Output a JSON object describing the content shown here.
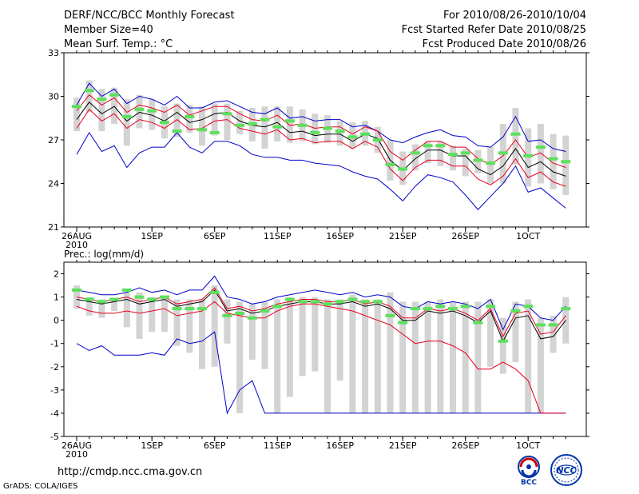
{
  "header": {
    "title": "DERF/NCC/BCC Monthly Forecast",
    "member_size": "Member Size=40",
    "variable": "Mean Surf. Temp.: °C",
    "forecast_range": "For 2010/08/26-2010/10/04",
    "started": "Fcst Started Refer Date 2010/08/25",
    "produced": "Fcst Produced Date 2010/08/26"
  },
  "footer": {
    "url": "http://cmdp.ncc.cma.gov.cn",
    "credit": "GrADS: COLA/IGES",
    "logo1_text": "BCC",
    "logo2_text": "NCC"
  },
  "colors": {
    "box": "#d3d3d3",
    "mean": "#000000",
    "sd": "#e8001c",
    "minmax": "#0000cc",
    "median": "#5ce05c"
  },
  "chart_data": [
    {
      "type": "box",
      "title": "Mean Surf. Temp.: °C",
      "xlabel": "",
      "ylabel": "",
      "ylim": [
        21,
        33
      ],
      "yticks": [
        21,
        24,
        27,
        30,
        33
      ],
      "xticks": [
        {
          "day": 0,
          "label": "26AUG",
          "sub": "2010"
        },
        {
          "day": 6,
          "label": "1SEP"
        },
        {
          "day": 11,
          "label": "6SEP"
        },
        {
          "day": 16,
          "label": "11SEP"
        },
        {
          "day": 21,
          "label": "16SEP"
        },
        {
          "day": 26,
          "label": "21SEP"
        },
        {
          "day": 31,
          "label": "26SEP"
        },
        {
          "day": 36,
          "label": "1OCT"
        }
      ],
      "days": 40,
      "series": {
        "mean": [
          28.4,
          29.6,
          28.8,
          29.3,
          28.3,
          28.9,
          28.7,
          28.3,
          28.9,
          28.2,
          28.4,
          28.8,
          28.9,
          28.3,
          28.0,
          27.9,
          28.2,
          27.5,
          27.6,
          27.3,
          27.4,
          27.4,
          26.9,
          27.4,
          27.1,
          25.6,
          24.9,
          25.7,
          26.3,
          26.3,
          25.9,
          25.9,
          25.0,
          24.6,
          25.2,
          26.4,
          25.1,
          25.5,
          24.8,
          24.5
        ],
        "sd_upper": [
          29.0,
          30.1,
          29.4,
          29.9,
          28.9,
          29.4,
          29.2,
          28.9,
          29.4,
          28.7,
          29.0,
          29.3,
          29.3,
          28.8,
          28.4,
          28.3,
          28.7,
          28.0,
          28.1,
          27.8,
          27.9,
          27.9,
          27.4,
          27.9,
          27.6,
          26.2,
          25.6,
          26.3,
          26.9,
          26.9,
          26.5,
          26.5,
          25.7,
          25.3,
          25.9,
          27.0,
          25.8,
          26.1,
          25.4,
          25.1
        ],
        "sd_lower": [
          27.8,
          29.1,
          28.3,
          28.8,
          27.8,
          28.4,
          28.2,
          27.8,
          28.4,
          27.7,
          27.8,
          28.3,
          28.4,
          27.8,
          27.6,
          27.4,
          27.7,
          27.0,
          27.1,
          26.8,
          26.9,
          26.9,
          26.4,
          26.9,
          26.5,
          25.0,
          24.2,
          25.1,
          25.6,
          25.6,
          25.2,
          25.2,
          24.3,
          23.9,
          24.5,
          25.7,
          24.4,
          24.8,
          24.1,
          23.8
        ],
        "max": [
          29.4,
          30.9,
          30.0,
          30.5,
          29.5,
          30.0,
          29.8,
          29.4,
          30.0,
          29.2,
          29.2,
          29.6,
          29.7,
          29.3,
          28.9,
          28.8,
          29.2,
          28.5,
          28.6,
          28.3,
          28.4,
          28.4,
          27.9,
          28.0,
          27.6,
          27.0,
          26.8,
          27.2,
          27.5,
          27.7,
          27.3,
          27.2,
          26.6,
          26.5,
          27.2,
          28.6,
          26.9,
          27.0,
          26.4,
          26.2
        ],
        "min": [
          26.0,
          27.5,
          26.2,
          26.6,
          25.1,
          26.1,
          26.5,
          26.5,
          27.5,
          26.5,
          26.1,
          26.9,
          26.9,
          26.6,
          26.0,
          25.8,
          25.8,
          25.6,
          25.6,
          25.4,
          25.3,
          25.2,
          24.8,
          24.5,
          24.3,
          23.6,
          22.8,
          23.8,
          24.6,
          24.4,
          24.1,
          23.2,
          22.2,
          23.1,
          24.0,
          25.2,
          23.4,
          23.7,
          23.0,
          22.3
        ],
        "median": [
          29.3,
          30.4,
          29.8,
          30.1,
          28.6,
          29.1,
          29.0,
          28.2,
          27.6,
          28.6,
          27.7,
          27.5,
          28.8,
          28.0,
          28.1,
          28.4,
          27.9,
          28.3,
          28.0,
          27.5,
          27.8,
          27.6,
          27.2,
          27.4,
          27.0,
          25.3,
          25.0,
          26.1,
          26.6,
          26.6,
          26.0,
          26.1,
          25.6,
          25.4,
          26.1,
          27.4,
          25.9,
          26.5,
          25.7,
          25.5
        ],
        "box_hi": [
          29.9,
          31.1,
          30.5,
          30.6,
          29.8,
          30.1,
          29.8,
          29.3,
          29.5,
          29.4,
          29.3,
          29.5,
          29.5,
          29.0,
          29.2,
          29.3,
          29.3,
          29.3,
          29.1,
          28.8,
          28.7,
          28.3,
          28.2,
          28.3,
          27.9,
          27.0,
          26.2,
          26.7,
          26.9,
          26.9,
          26.6,
          26.4,
          26.3,
          26.5,
          28.1,
          29.2,
          27.8,
          28.1,
          27.4,
          27.3
        ],
        "box_lo": [
          27.6,
          28.9,
          27.6,
          28.1,
          26.6,
          27.8,
          27.7,
          27.1,
          27.2,
          27.5,
          26.6,
          27.3,
          27.0,
          27.4,
          26.9,
          26.4,
          26.9,
          26.8,
          26.9,
          26.7,
          26.8,
          26.6,
          26.4,
          26.6,
          26.1,
          24.2,
          23.9,
          24.9,
          25.4,
          25.2,
          24.9,
          24.5,
          24.7,
          24.0,
          24.0,
          25.3,
          23.8,
          24.0,
          23.6,
          23.2
        ]
      }
    },
    {
      "type": "box",
      "title": "Prec.: log(mm/d)",
      "xlabel": "",
      "ylabel": "",
      "ylim": [
        -5,
        2.5
      ],
      "yticks": [
        -5,
        -4,
        -3,
        -2,
        -1,
        0,
        1,
        2
      ],
      "xticks": [
        {
          "day": 0,
          "label": "26AUG",
          "sub": "2010"
        },
        {
          "day": 6,
          "label": "1SEP"
        },
        {
          "day": 11,
          "label": "6SEP"
        },
        {
          "day": 16,
          "label": "11SEP"
        },
        {
          "day": 21,
          "label": "16SEP"
        },
        {
          "day": 26,
          "label": "21SEP"
        },
        {
          "day": 31,
          "label": "26SEP"
        },
        {
          "day": 36,
          "label": "1OCT"
        }
      ],
      "days": 40,
      "series": {
        "mean": [
          0.9,
          0.8,
          0.7,
          0.8,
          0.9,
          0.7,
          0.8,
          0.9,
          0.6,
          0.7,
          0.8,
          1.3,
          0.4,
          0.5,
          0.3,
          0.4,
          0.6,
          0.7,
          0.8,
          0.8,
          0.7,
          0.7,
          0.8,
          0.6,
          0.7,
          0.5,
          0.0,
          0.0,
          0.4,
          0.3,
          0.4,
          0.2,
          -0.1,
          0.4,
          -0.9,
          0.1,
          0.2,
          -0.8,
          -0.7,
          0.0
        ],
        "sd_upper": [
          1.0,
          0.9,
          0.8,
          0.9,
          1.0,
          0.8,
          0.9,
          1.0,
          0.7,
          0.8,
          0.9,
          1.4,
          0.5,
          0.6,
          0.4,
          0.5,
          0.7,
          0.8,
          0.9,
          0.9,
          0.8,
          0.8,
          0.9,
          0.7,
          0.8,
          0.6,
          0.1,
          0.1,
          0.5,
          0.4,
          0.5,
          0.3,
          0.0,
          0.5,
          -0.7,
          0.3,
          0.4,
          -0.6,
          -0.5,
          0.2
        ],
        "sd_lower": [
          0.6,
          0.4,
          0.3,
          0.3,
          0.4,
          0.3,
          0.4,
          0.5,
          0.2,
          0.3,
          0.4,
          0.8,
          0.3,
          0.2,
          0.1,
          0.1,
          0.4,
          0.6,
          0.7,
          0.7,
          0.6,
          0.5,
          0.4,
          0.2,
          0.0,
          -0.2,
          -0.6,
          -1.0,
          -0.9,
          -0.9,
          -1.1,
          -1.4,
          -2.1,
          -2.1,
          -1.8,
          -2.1,
          -2.6,
          -4.0,
          -4.0,
          -4.0
        ],
        "max": [
          1.3,
          1.2,
          1.1,
          1.1,
          1.2,
          1.4,
          1.2,
          1.3,
          1.1,
          1.3,
          1.3,
          1.9,
          1.0,
          0.9,
          0.7,
          0.8,
          1.0,
          1.1,
          1.2,
          1.3,
          1.2,
          1.1,
          1.2,
          1.0,
          1.1,
          1.0,
          0.6,
          0.5,
          0.8,
          0.7,
          0.8,
          0.7,
          0.5,
          0.9,
          -0.4,
          0.7,
          0.6,
          0.1,
          0.0,
          0.6
        ],
        "min": [
          -1.0,
          -1.3,
          -1.1,
          -1.5,
          -1.5,
          -1.5,
          -1.4,
          -1.5,
          -0.8,
          -1.0,
          -0.9,
          -0.5,
          -4.0,
          -3.0,
          -2.6,
          -4.0,
          -4.0,
          -4.0,
          -4.0,
          -4.0,
          -4.0,
          -4.0,
          -4.0,
          -4.0,
          -4.0,
          -4.0,
          -4.0,
          -4.0,
          -4.0,
          -4.0,
          -4.0,
          -4.0,
          -4.0,
          -4.0,
          -4.0,
          -4.0,
          -4.0,
          -4.0,
          -4.0,
          -4.0
        ],
        "median": [
          1.3,
          0.9,
          0.8,
          0.9,
          1.3,
          1.0,
          0.9,
          1.0,
          0.5,
          0.5,
          0.5,
          1.2,
          0.2,
          0.3,
          0.1,
          0.4,
          0.6,
          0.9,
          0.8,
          0.8,
          0.7,
          0.8,
          0.9,
          0.8,
          0.8,
          0.2,
          -0.1,
          0.5,
          0.5,
          0.6,
          0.5,
          0.6,
          -0.1,
          0.6,
          -0.9,
          0.4,
          0.6,
          -0.2,
          -0.2,
          0.5
        ],
        "box_hi": [
          1.5,
          1.0,
          0.9,
          0.9,
          1.2,
          1.2,
          1.0,
          1.0,
          0.9,
          0.9,
          0.9,
          1.5,
          0.9,
          0.8,
          0.7,
          0.8,
          0.9,
          1.0,
          1.0,
          1.0,
          0.9,
          0.9,
          1.1,
          0.9,
          0.9,
          1.2,
          0.8,
          0.8,
          0.8,
          0.9,
          0.8,
          0.8,
          0.8,
          0.9,
          0.1,
          0.8,
          0.9,
          0.1,
          0.2,
          1.0
        ],
        "box_lo": [
          0.5,
          0.2,
          0.1,
          0.4,
          -0.3,
          -0.8,
          -0.5,
          -0.5,
          -1.1,
          -1.4,
          -2.1,
          -2.0,
          -1.0,
          -4.0,
          -1.7,
          -2.1,
          -4.0,
          -3.3,
          -2.4,
          -2.2,
          -4.0,
          -2.6,
          -4.0,
          -4.0,
          -4.0,
          -4.0,
          -4.0,
          -4.0,
          -4.0,
          -4.0,
          -4.0,
          -4.0,
          -4.0,
          -2.0,
          -2.3,
          -1.8,
          -4.0,
          -4.0,
          -1.4,
          -1.0
        ]
      }
    }
  ]
}
